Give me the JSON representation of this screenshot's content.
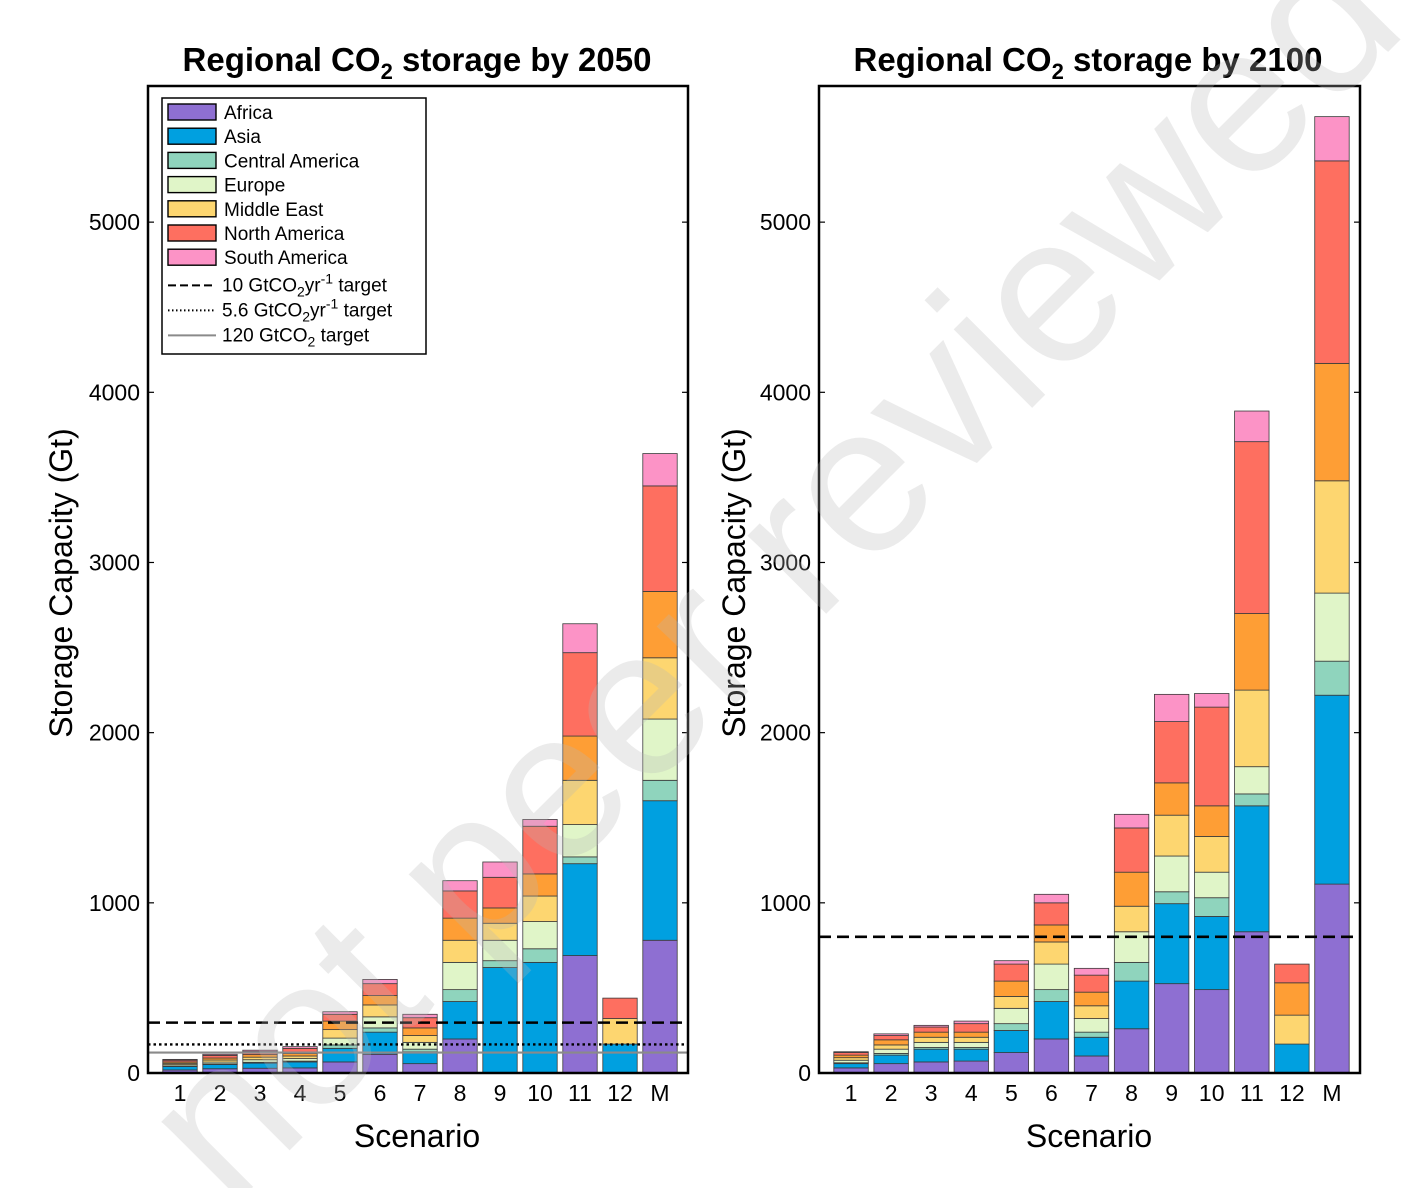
{
  "watermark": "not peer reviewed",
  "chart_data": [
    {
      "type": "bar",
      "stacked": true,
      "title_prefix": "Regional CO",
      "title_sub": "2",
      "title_suffix": " storage by 2050",
      "xlabel": "Scenario",
      "ylabel": "Storage Capacity (Gt)",
      "ylim": [
        0,
        5800
      ],
      "yticks": [
        0,
        1000,
        2000,
        3000,
        4000,
        5000
      ],
      "categories": [
        "1",
        "2",
        "3",
        "4",
        "5",
        "6",
        "7",
        "8",
        "9",
        "10",
        "11",
        "12",
        "M"
      ],
      "series": [
        {
          "name": "Africa",
          "color": "#8e6fd2",
          "values": [
            18,
            25,
            28,
            30,
            65,
            110,
            55,
            200,
            0,
            0,
            690,
            0,
            780
          ]
        },
        {
          "name": "Asia",
          "color": "#00a0e0",
          "values": [
            20,
            25,
            30,
            35,
            80,
            130,
            70,
            220,
            620,
            650,
            540,
            170,
            820
          ]
        },
        {
          "name": "Central America",
          "color": "#8fd4bd",
          "values": [
            3,
            4,
            5,
            5,
            20,
            25,
            15,
            70,
            40,
            80,
            40,
            0,
            120
          ]
        },
        {
          "name": "Europe",
          "color": "#e0f5c8",
          "values": [
            8,
            10,
            15,
            15,
            40,
            65,
            40,
            160,
            120,
            160,
            190,
            0,
            360
          ]
        },
        {
          "name": "Middle East",
          "color": "#fdd670",
          "values": [
            8,
            12,
            15,
            15,
            50,
            70,
            40,
            130,
            100,
            150,
            260,
            150,
            360
          ]
        },
        {
          "name": "North America",
          "color": "#fe9e35",
          "values": [
            8,
            12,
            15,
            15,
            50,
            55,
            45,
            130,
            90,
            130,
            260,
            0,
            390
          ]
        },
        {
          "name": "North America",
          "color": "#fe6f60",
          "values": [
            10,
            15,
            18,
            30,
            40,
            70,
            60,
            160,
            180,
            280,
            490,
            120,
            620
          ]
        },
        {
          "name": "South America",
          "color": "#fc93c6",
          "values": [
            5,
            7,
            8,
            10,
            15,
            25,
            20,
            60,
            90,
            40,
            170,
            0,
            190
          ]
        }
      ],
      "reference_lines": [
        {
          "label_main": "10 GtCO",
          "label_sub": "2",
          "label_rest": "yr",
          "label_sup": "-1",
          "label_end": " target",
          "value": 296,
          "style": "dashed"
        },
        {
          "label_main": "5.6 GtCO",
          "label_sub": "2",
          "label_rest": "yr",
          "label_sup": "-1",
          "label_end": " target",
          "value": 168,
          "style": "dotted"
        },
        {
          "label_main": "120 GtCO",
          "label_sub": "2",
          "label_rest": "",
          "label_sup": "",
          "label_end": " target",
          "value": 120,
          "style": "solid"
        }
      ],
      "legend_position": "top-left"
    },
    {
      "type": "bar",
      "stacked": true,
      "title_prefix": "Regional CO",
      "title_sub": "2",
      "title_suffix": " storage by 2100",
      "xlabel": "Scenario",
      "ylabel": "Storage Capacity (Gt)",
      "ylim": [
        0,
        5800
      ],
      "yticks": [
        0,
        1000,
        2000,
        3000,
        4000,
        5000
      ],
      "categories": [
        "1",
        "2",
        "3",
        "4",
        "5",
        "6",
        "7",
        "8",
        "9",
        "10",
        "11",
        "12",
        "M"
      ],
      "series": [
        {
          "name": "Africa",
          "color": "#8e6fd2",
          "values": [
            30,
            55,
            65,
            70,
            120,
            200,
            100,
            260,
            525,
            490,
            830,
            0,
            1110
          ]
        },
        {
          "name": "Asia",
          "color": "#00a0e0",
          "values": [
            25,
            50,
            75,
            70,
            130,
            220,
            110,
            280,
            470,
            430,
            740,
            170,
            1110
          ]
        },
        {
          "name": "Central America",
          "color": "#8fd4bd",
          "values": [
            5,
            10,
            10,
            10,
            40,
            70,
            30,
            110,
            70,
            110,
            70,
            0,
            200
          ]
        },
        {
          "name": "Europe",
          "color": "#e0f5c8",
          "values": [
            15,
            25,
            30,
            30,
            90,
            150,
            80,
            180,
            210,
            150,
            160,
            0,
            400
          ]
        },
        {
          "name": "Middle East",
          "color": "#fdd670",
          "values": [
            15,
            25,
            30,
            30,
            70,
            130,
            75,
            150,
            240,
            210,
            450,
            170,
            660
          ]
        },
        {
          "name": "North America",
          "color": "#fe9e35",
          "values": [
            15,
            30,
            30,
            30,
            90,
            100,
            80,
            200,
            190,
            180,
            450,
            190,
            690
          ]
        },
        {
          "name": "North America",
          "color": "#fe6f60",
          "values": [
            15,
            25,
            30,
            50,
            100,
            130,
            100,
            260,
            360,
            580,
            1010,
            110,
            1190
          ]
        },
        {
          "name": "South America",
          "color": "#fc93c6",
          "values": [
            5,
            10,
            10,
            15,
            20,
            50,
            40,
            80,
            160,
            80,
            180,
            0,
            260
          ]
        }
      ],
      "reference_lines": [
        {
          "value": 800,
          "style": "dashed"
        }
      ]
    }
  ]
}
